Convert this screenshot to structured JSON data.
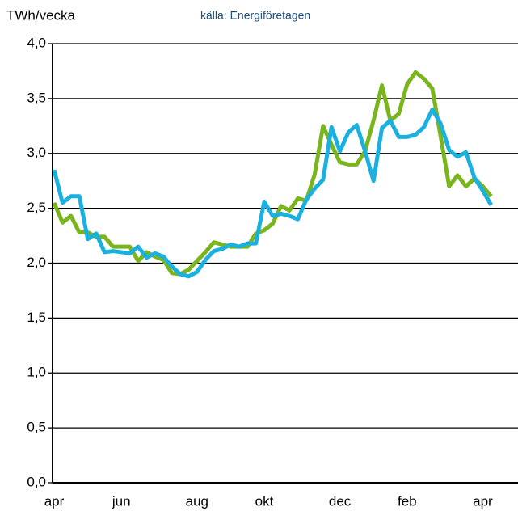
{
  "chart_data": {
    "type": "line",
    "subtitle": "källa: Energiföretagen",
    "y_label": "TWh/vecka",
    "categories": [
      "apr",
      null,
      null,
      null,
      null,
      null,
      null,
      null,
      "jun",
      null,
      null,
      null,
      null,
      null,
      null,
      null,
      null,
      "aug",
      null,
      null,
      null,
      null,
      null,
      null,
      null,
      "okt",
      null,
      null,
      null,
      null,
      null,
      null,
      null,
      null,
      "dec",
      null,
      null,
      null,
      null,
      null,
      null,
      null,
      "feb",
      null,
      null,
      null,
      null,
      null,
      null,
      null,
      null,
      "apr",
      null
    ],
    "series": [
      {
        "color": "#7ab51d",
        "values": [
          2.55,
          2.37,
          2.43,
          2.28,
          2.28,
          2.24,
          2.24,
          2.15,
          2.15,
          2.15,
          2.02,
          2.1,
          2.06,
          2.03,
          1.91,
          1.9,
          1.94,
          2.02,
          2.1,
          2.19,
          2.17,
          2.15,
          2.15,
          2.15,
          2.27,
          2.3,
          2.36,
          2.52,
          2.48,
          2.59,
          2.57,
          2.81,
          3.25,
          3.08,
          2.92,
          2.9,
          2.9,
          3.02,
          3.3,
          3.62,
          3.3,
          3.36,
          3.63,
          3.74,
          3.68,
          3.59,
          3.15,
          2.7,
          2.8,
          2.7,
          2.77,
          2.7,
          2.61
        ]
      },
      {
        "color": "#1ab0e0",
        "values": [
          2.85,
          2.55,
          2.61,
          2.61,
          2.22,
          2.27,
          2.1,
          2.11,
          2.1,
          2.09,
          2.15,
          2.05,
          2.09,
          2.06,
          1.97,
          1.9,
          1.88,
          1.92,
          2.03,
          2.11,
          2.13,
          2.17,
          2.15,
          2.18,
          2.18,
          2.56,
          2.43,
          2.45,
          2.43,
          2.4,
          2.58,
          2.68,
          2.76,
          3.24,
          3.02,
          3.19,
          3.26,
          3.02,
          2.75,
          3.23,
          3.3,
          3.15,
          3.15,
          3.17,
          3.24,
          3.4,
          3.27,
          3.03,
          2.97,
          3.01,
          2.78,
          2.66,
          2.53
        ]
      }
    ],
    "ylim": [
      0,
      4
    ],
    "yticks": [
      {
        "value": 0,
        "label": "0,0"
      },
      {
        "value": 0.5,
        "label": "0,5"
      },
      {
        "value": 1,
        "label": "1,0"
      },
      {
        "value": 1.5,
        "label": "1,5"
      },
      {
        "value": 2,
        "label": "2,0"
      },
      {
        "value": 2.5,
        "label": "2,5"
      },
      {
        "value": 3,
        "label": "3,0"
      },
      {
        "value": 3.5,
        "label": "3,5"
      },
      {
        "value": 4,
        "label": "4,0"
      }
    ],
    "grid": true
  }
}
